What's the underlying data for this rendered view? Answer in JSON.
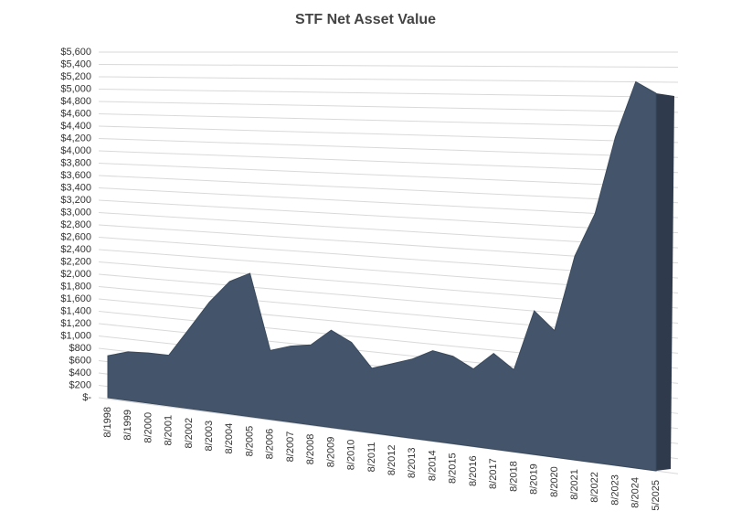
{
  "chart_data": {
    "type": "area",
    "title": "STF Net Asset Value",
    "categories": [
      "8/1998",
      "8/1999",
      "8/2000",
      "8/2001",
      "8/2002",
      "8/2003",
      "8/2004",
      "8/2005",
      "8/2006",
      "8/2007",
      "8/2008",
      "8/2009",
      "8/2010",
      "8/2011",
      "8/2012",
      "8/2013",
      "8/2014",
      "8/2015",
      "8/2016",
      "8/2017",
      "8/2018",
      "8/2019",
      "8/2020",
      "8/2021",
      "8/2022",
      "8/2023",
      "8/2024",
      "5/2025"
    ],
    "values": [
      680,
      780,
      800,
      800,
      1250,
      1700,
      2050,
      2200,
      1050,
      1150,
      1200,
      1450,
      1300,
      950,
      1050,
      1150,
      1300,
      1250,
      1100,
      1350,
      1150,
      2000,
      1750,
      2800,
      3400,
      4450,
      5200,
      5050
    ],
    "color": "#44546a",
    "ylim": [
      0,
      5600
    ],
    "yticks": [
      {
        "value": 0,
        "label": "$-"
      },
      {
        "value": 200,
        "label": "$200"
      },
      {
        "value": 400,
        "label": "$400"
      },
      {
        "value": 600,
        "label": "$600"
      },
      {
        "value": 800,
        "label": "$800"
      },
      {
        "value": 1000,
        "label": "$1,000"
      },
      {
        "value": 1200,
        "label": "$1,200"
      },
      {
        "value": 1400,
        "label": "$1,400"
      },
      {
        "value": 1600,
        "label": "$1,600"
      },
      {
        "value": 1800,
        "label": "$1,800"
      },
      {
        "value": 2000,
        "label": "$2,000"
      },
      {
        "value": 2200,
        "label": "$2,200"
      },
      {
        "value": 2400,
        "label": "$2,400"
      },
      {
        "value": 2600,
        "label": "$2,600"
      },
      {
        "value": 2800,
        "label": "$2,800"
      },
      {
        "value": 3000,
        "label": "$3,000"
      },
      {
        "value": 3200,
        "label": "$3,200"
      },
      {
        "value": 3400,
        "label": "$3,400"
      },
      {
        "value": 3600,
        "label": "$3,600"
      },
      {
        "value": 3800,
        "label": "$3,800"
      },
      {
        "value": 4000,
        "label": "$4,000"
      },
      {
        "value": 4200,
        "label": "$4,200"
      },
      {
        "value": 4400,
        "label": "$4,400"
      },
      {
        "value": 4600,
        "label": "$4,600"
      },
      {
        "value": 4800,
        "label": "$4,800"
      },
      {
        "value": 5000,
        "label": "$5,000"
      },
      {
        "value": 5200,
        "label": "$5,200"
      },
      {
        "value": 5400,
        "label": "$5,400"
      },
      {
        "value": 5600,
        "label": "$5,600"
      }
    ],
    "grid": true
  }
}
